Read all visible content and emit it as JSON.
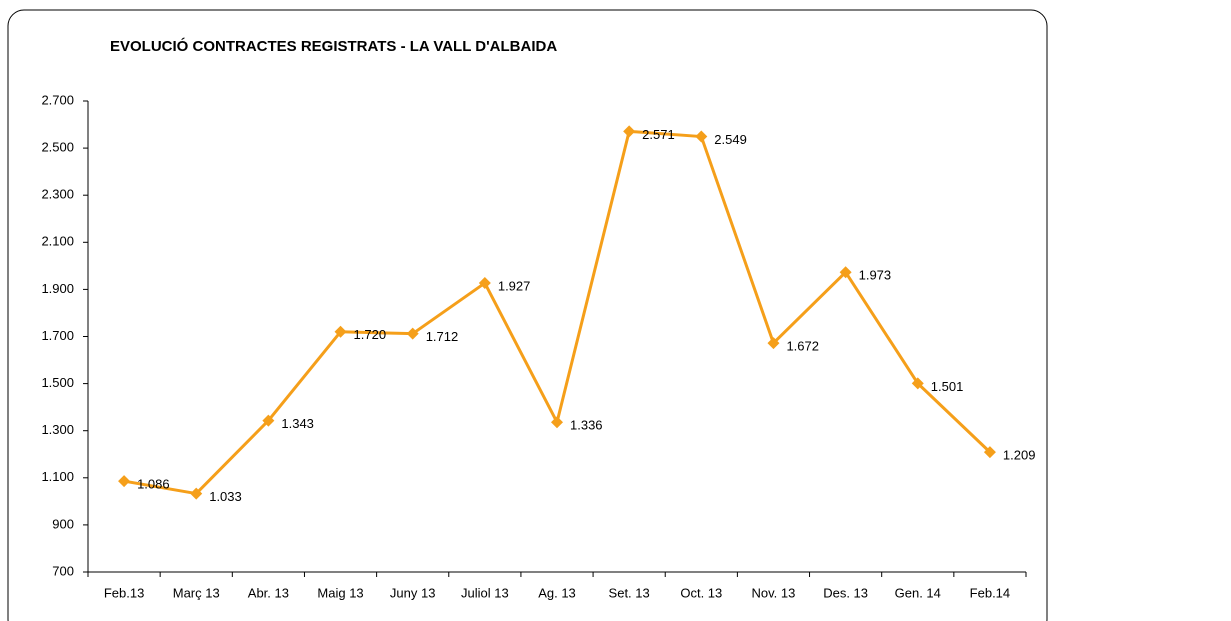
{
  "chart_data": {
    "type": "line",
    "title": "EVOLUCIÓ CONTRACTES REGISTRATS - LA VALL D'ALBAIDA",
    "categories": [
      "Feb.13",
      "Març 13",
      "Abr. 13",
      "Maig 13",
      "Juny 13",
      "Juliol 13",
      "Ag. 13",
      "Set. 13",
      "Oct. 13",
      "Nov. 13",
      "Des. 13",
      "Gen. 14",
      "Feb.14"
    ],
    "series": [
      {
        "color": "#f59f1a",
        "values": [
          1086,
          1033,
          1343,
          1720,
          1712,
          1927,
          1336,
          2571,
          2549,
          1672,
          1973,
          1501,
          1209
        ],
        "value_labels": [
          "1.086",
          "1.033",
          "1.343",
          "1.720",
          "1.712",
          "1.927",
          "1.336",
          "2.571",
          "2.549",
          "1.672",
          "1.973",
          "1.501",
          "1.209"
        ]
      }
    ],
    "ylim": [
      700,
      2700
    ],
    "yticks": [
      700,
      900,
      {
        "value": 1100,
        "label": "1.100"
      },
      {
        "value": 1300,
        "label": "1.300"
      },
      {
        "value": 1500,
        "label": "1.500"
      },
      {
        "value": 1700,
        "label": "1.700"
      },
      {
        "value": 1900,
        "label": "1.900"
      },
      {
        "value": 2100,
        "label": "2.100"
      },
      {
        "value": 2300,
        "label": "2.300"
      },
      {
        "value": 2500,
        "label": "2.500"
      },
      {
        "value": 2700,
        "label": "2.700"
      }
    ],
    "grid": false
  }
}
